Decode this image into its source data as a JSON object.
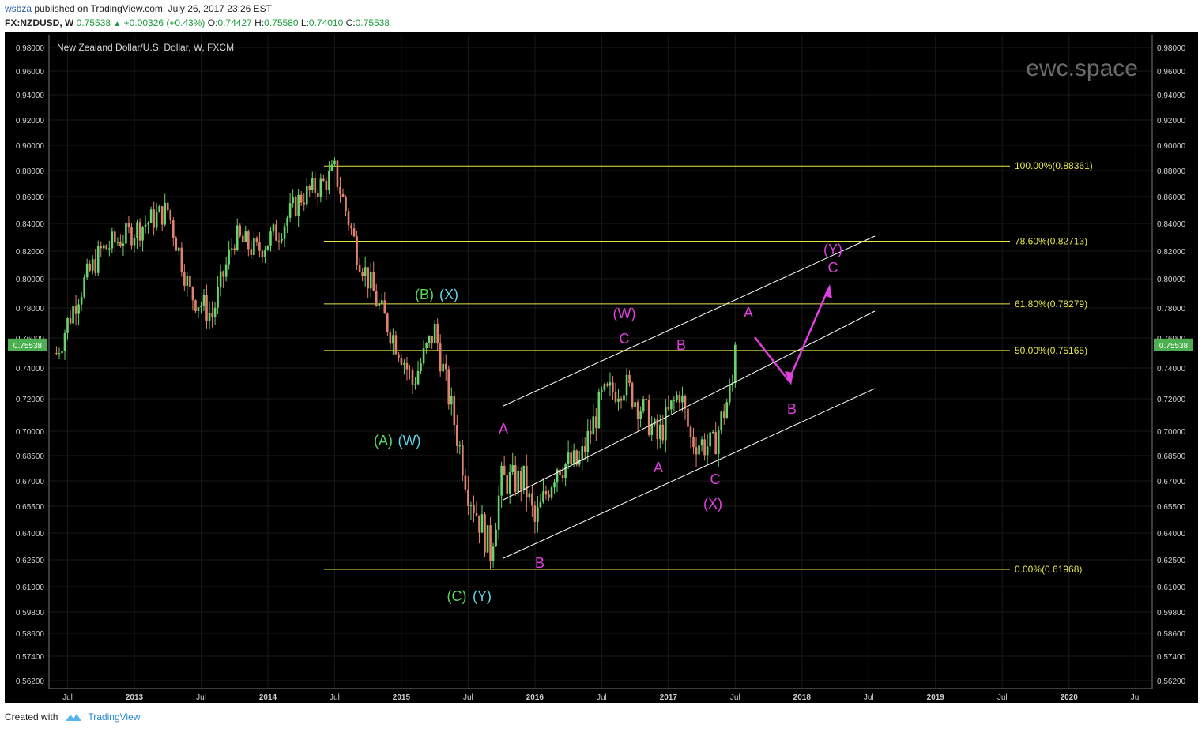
{
  "header": {
    "user": "wsbza",
    "published": "published on TradingView.com, July 26, 2017 23:26 EST",
    "symbol": "FX:NZDUSD, W",
    "last": "0.75538",
    "change": "+0.00326 (+0.43%)",
    "open_label": "O:",
    "open": "0.74427",
    "high_label": "H:",
    "high": "0.75580",
    "low_label": "L:",
    "low": "0.74010",
    "close_label": "C:",
    "close": "0.75538"
  },
  "footer": {
    "created_with": "Created with",
    "brand": "TradingView"
  },
  "colors": {
    "background": "#000000",
    "up_candle": "#6bd36b",
    "down_candle": "#e0826b",
    "fib": "#e8e84a",
    "channel": "#ffffff",
    "magenta": "#e040e0",
    "green_label": "#5ad65a",
    "cyan_label": "#5fd4e8",
    "price_badge": "#4caf50"
  },
  "chart_data": {
    "type": "candlestick",
    "title": "New Zealand Dollar/U.S. Dollar, W, FXCM",
    "watermark": "ewc.space",
    "current_price": "0.75538",
    "y_ticks": [
      "0.98000",
      "0.96000",
      "0.94000",
      "0.92000",
      "0.90000",
      "0.88000",
      "0.86000",
      "0.84000",
      "0.82000",
      "0.80000",
      "0.78000",
      "0.76000",
      "0.74000",
      "0.72000",
      "0.70000",
      "0.68500",
      "0.67000",
      "0.65500",
      "0.64000",
      "0.62500",
      "0.61000",
      "0.59800",
      "0.58600",
      "0.57400",
      "0.56200"
    ],
    "x_ticks": [
      {
        "label": "Jul",
        "bold": false
      },
      {
        "label": "2013",
        "bold": true
      },
      {
        "label": "Jul",
        "bold": false
      },
      {
        "label": "2014",
        "bold": true
      },
      {
        "label": "Jul",
        "bold": false
      },
      {
        "label": "2015",
        "bold": true
      },
      {
        "label": "Jul",
        "bold": false
      },
      {
        "label": "2016",
        "bold": true
      },
      {
        "label": "Jul",
        "bold": false
      },
      {
        "label": "2017",
        "bold": true
      },
      {
        "label": "Jul",
        "bold": false
      },
      {
        "label": "2018",
        "bold": true
      },
      {
        "label": "Jul",
        "bold": false
      },
      {
        "label": "2019",
        "bold": true
      },
      {
        "label": "Jul",
        "bold": false
      },
      {
        "label": "2020",
        "bold": true
      },
      {
        "label": "Jul",
        "bold": false
      }
    ],
    "fib_levels": [
      {
        "label": "100.00%(0.88361)",
        "value": 0.88361
      },
      {
        "label": "78.60%(0.82713)",
        "value": 0.82713
      },
      {
        "label": "61.80%(0.78279)",
        "value": 0.78279
      },
      {
        "label": "50.00%(0.75165)",
        "value": 0.75165
      },
      {
        "label": "0.00%(0.61968)",
        "value": 0.61968
      }
    ],
    "price_path": [
      [
        "2012-06",
        0.75
      ],
      [
        "2012-08",
        0.79
      ],
      [
        "2012-10",
        0.82
      ],
      [
        "2012-12",
        0.83
      ],
      [
        "2013-02",
        0.84
      ],
      [
        "2013-04",
        0.85
      ],
      [
        "2013-06",
        0.79
      ],
      [
        "2013-08",
        0.775
      ],
      [
        "2013-10",
        0.83
      ],
      [
        "2013-12",
        0.82
      ],
      [
        "2014-02",
        0.835
      ],
      [
        "2014-04",
        0.86
      ],
      [
        "2014-06",
        0.87
      ],
      [
        "2014-07",
        0.88
      ],
      [
        "2014-09",
        0.82
      ],
      [
        "2014-11",
        0.78
      ],
      [
        "2015-01",
        0.75
      ],
      [
        "2015-02",
        0.73
      ],
      [
        "2015-04",
        0.765
      ],
      [
        "2015-05",
        0.73
      ],
      [
        "2015-07",
        0.665
      ],
      [
        "2015-09",
        0.63
      ],
      [
        "2015-10",
        0.67
      ],
      [
        "2015-12",
        0.67
      ],
      [
        "2016-01",
        0.645
      ],
      [
        "2016-03",
        0.68
      ],
      [
        "2016-05",
        0.68
      ],
      [
        "2016-07",
        0.72
      ],
      [
        "2016-09",
        0.73
      ],
      [
        "2016-11",
        0.71
      ],
      [
        "2016-12",
        0.695
      ],
      [
        "2017-02",
        0.725
      ],
      [
        "2017-03",
        0.695
      ],
      [
        "2017-05",
        0.69
      ],
      [
        "2017-07",
        0.735
      ],
      [
        "2017-07",
        0.755
      ]
    ],
    "labels": [
      {
        "text": "(B)",
        "color": "green"
      },
      {
        "text": "(X)",
        "color": "cyan"
      },
      {
        "text": "(A)",
        "color": "green"
      },
      {
        "text": "(W)",
        "color": "cyan"
      },
      {
        "text": "(C)",
        "color": "green"
      },
      {
        "text": "(Y)",
        "color": "cyan"
      },
      {
        "text": "A",
        "color": "magenta"
      },
      {
        "text": "B",
        "color": "magenta"
      },
      {
        "text": "(W)",
        "color": "magenta"
      },
      {
        "text": "C",
        "color": "magenta"
      },
      {
        "text": "A",
        "color": "magenta"
      },
      {
        "text": "B",
        "color": "magenta"
      },
      {
        "text": "C",
        "color": "magenta"
      },
      {
        "text": "(X)",
        "color": "magenta"
      },
      {
        "text": "A",
        "color": "magenta"
      },
      {
        "text": "B",
        "color": "magenta"
      },
      {
        "text": "C",
        "color": "magenta"
      },
      {
        "text": "(Y)",
        "color": "magenta"
      }
    ]
  }
}
